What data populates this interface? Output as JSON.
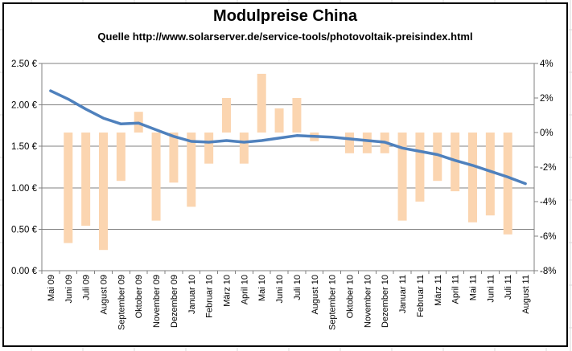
{
  "chart_data": {
    "type": "combo",
    "title": "Modulpreise China",
    "subtitle": "Quelle http://www.solarserver.de/service-tools/photovoltaik-preisindex.html",
    "categories": [
      "Mai 09",
      "Juni 09",
      "Juli 09",
      "August 09",
      "September 09",
      "Oktober 09",
      "November 09",
      "Dezember 09",
      "Januar 10",
      "Februar 10",
      "März 10",
      "April 10",
      "Mai 10",
      "Juni 10",
      "Juli 10",
      "August 10",
      "September 10",
      "Oktober 10",
      "November 10",
      "Dezember 10",
      "Januar 11",
      "Februar 11",
      "März 11",
      "April 11",
      "Mai 11",
      "Juni 11",
      "Juli 11",
      "August 11"
    ],
    "series": [
      {
        "id": "module-price-line",
        "type": "line",
        "axis": "left",
        "unit": "EUR",
        "color": "#4F81BD",
        "values": [
          2.17,
          2.07,
          1.95,
          1.84,
          1.77,
          1.78,
          1.7,
          1.62,
          1.56,
          1.55,
          1.57,
          1.55,
          1.57,
          1.6,
          1.63,
          1.62,
          1.61,
          1.59,
          1.57,
          1.55,
          1.48,
          1.44,
          1.4,
          1.33,
          1.27,
          1.2,
          1.13,
          1.05
        ]
      },
      {
        "id": "monthly-change-bars",
        "type": "bar",
        "axis": "right",
        "unit": "percent",
        "color": "#FBD5B0",
        "values": [
          null,
          -6.4,
          -5.4,
          -6.8,
          -2.8,
          1.2,
          -5.1,
          -2.9,
          -4.3,
          -1.8,
          2.0,
          -1.8,
          3.4,
          1.4,
          2.0,
          -0.5,
          0.0,
          -1.2,
          -1.2,
          -1.2,
          -5.1,
          -4.0,
          -2.8,
          -3.4,
          -5.2,
          -4.8,
          -5.9,
          null
        ]
      }
    ],
    "left_axis": {
      "ticks": [
        "2.50 €",
        "2.00 €",
        "1.50 €",
        "1.00 €",
        "0.50 €",
        "0.00 €"
      ],
      "range": [
        0,
        2.5
      ]
    },
    "right_axis": {
      "ticks": [
        "4%",
        "2%",
        "0%",
        "-2%",
        "-4%",
        "-6%",
        "-8%"
      ],
      "range": [
        -8,
        4
      ]
    },
    "grid": "horizontal",
    "legend": "none",
    "colors": {
      "line": "#4F81BD",
      "bar": "#FBD5B0",
      "grid": "#808080",
      "frame": "#000000",
      "sheet_stub": "#d8d8d8"
    }
  }
}
